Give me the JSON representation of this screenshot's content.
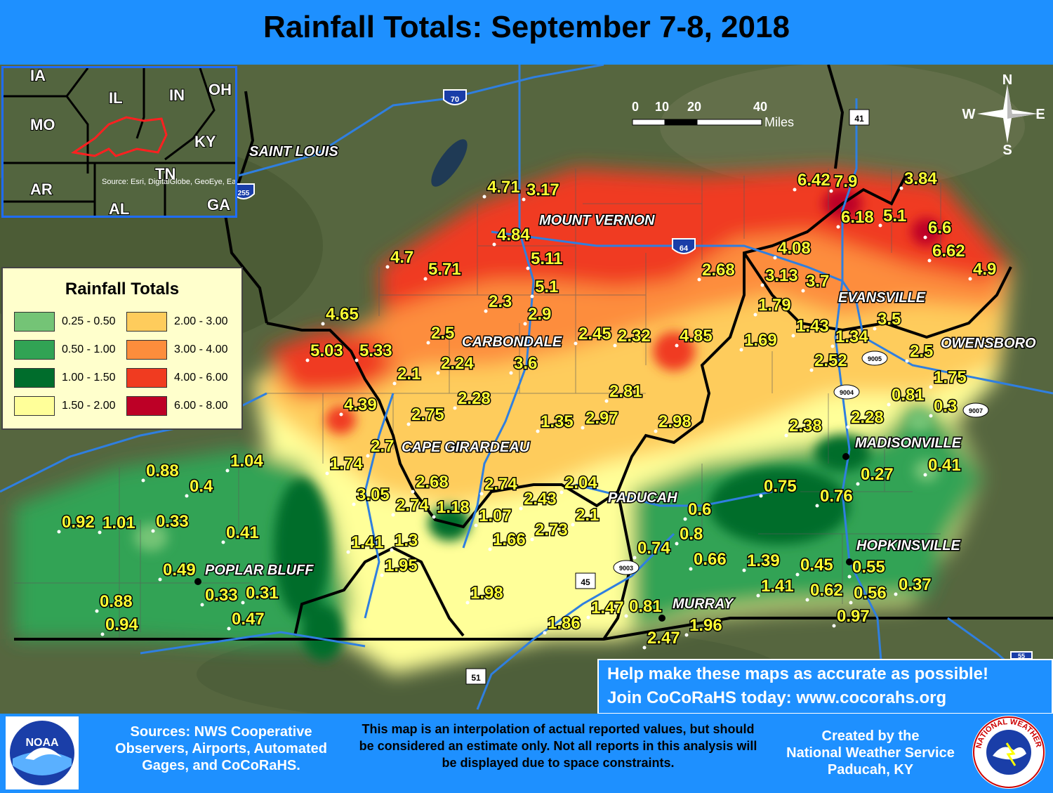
{
  "title": "Rainfall Totals: September 7-8, 2018",
  "inset": {
    "states": [
      "IA",
      "IL",
      "IN",
      "OH",
      "MO",
      "KY",
      "AR",
      "TN",
      "AL",
      "GA"
    ],
    "credit": "Source: Esri, DigitalGlobe, GeoEye, Earthstar Geographics, CNES/Airbus"
  },
  "legend": {
    "title": "Rainfall Totals",
    "items": [
      {
        "label": "0.25 - 0.50",
        "color": "#74c476"
      },
      {
        "label": "0.50 - 1.00",
        "color": "#31a354"
      },
      {
        "label": "1.00 - 1.50",
        "color": "#006d2c"
      },
      {
        "label": "1.50 - 2.00",
        "color": "#ffff99"
      },
      {
        "label": "2.00 - 3.00",
        "color": "#fecc5c"
      },
      {
        "label": "3.00 - 4.00",
        "color": "#fd8d3c"
      },
      {
        "label": "4.00 - 6.00",
        "color": "#f03b20"
      },
      {
        "label": "6.00 - 8.00",
        "color": "#bd0026"
      }
    ]
  },
  "scale": {
    "ticks": [
      "0",
      "10",
      "20",
      "40"
    ],
    "unit": "Miles"
  },
  "compass": {
    "n": "N",
    "s": "S",
    "e": "E",
    "w": "W"
  },
  "highways": [
    "70",
    "64",
    "41",
    "255",
    "45",
    "51",
    "9005",
    "9004",
    "9007",
    "9003",
    "55"
  ],
  "cities": [
    "SAINT LOUIS",
    "MOUNT VERNON",
    "CARBONDALE",
    "CAPE GIRARDEAU",
    "PADUCAH",
    "POPLAR BLUFF",
    "EVANSVILLE",
    "OWENSBORO",
    "MADISONVILLE",
    "HOPKINSVILLE",
    "MURRAY"
  ],
  "values": [
    "4.71",
    "3.17",
    "4.84",
    "5.11",
    "5.1",
    "4.7",
    "5.71",
    "2.3",
    "2.9",
    "4.65",
    "5.03",
    "5.33",
    "2.5",
    "2.24",
    "3.6",
    "2.1",
    "2.45",
    "2.32",
    "4.85",
    "6.42",
    "7.9",
    "3.84",
    "6.18",
    "5.1",
    "6.6",
    "6.62",
    "4.9",
    "4.08",
    "2.68",
    "3.13",
    "3.7",
    "1.79",
    "3.5",
    "1.43",
    "1.34",
    "1.69",
    "2.5",
    "2.52",
    "1.75",
    "2.81",
    "2.97",
    "1.35",
    "2.28",
    "2.75",
    "4.39",
    "2.98",
    "2.38",
    "2.28",
    "0.81",
    "0.3",
    "1.74",
    "2.7",
    "3.05",
    "2.68",
    "2.74",
    "2.74",
    "1.18",
    "1.07",
    "2.43",
    "2.04",
    "2.1",
    "2.73",
    "1.66",
    "0.6",
    "0.8",
    "0.75",
    "0.76",
    "0.27",
    "0.41",
    "0.74",
    "0.66",
    "1.39",
    "0.45",
    "0.55",
    "1.41",
    "0.62",
    "0.56",
    "0.37",
    "0.97",
    "1.04",
    "0.88",
    "0.4",
    "0.92",
    "1.01",
    "0.33",
    "0.41",
    "0.49",
    "0.33",
    "0.31",
    "0.88",
    "0.94",
    "0.47",
    "1.41",
    "1.3",
    "1.95",
    "1.98",
    "1.86",
    "1.47",
    "0.81",
    "1.96",
    "2.47"
  ],
  "cocorahs": {
    "line1": "Help make these maps as accurate as possible!",
    "line2": "Join CoCoRaHS today: www.cocorahs.org"
  },
  "footer": {
    "sources": "Sources: NWS Cooperative Observers, Airports, Automated Gages, and CoCoRaHS.",
    "disclaimer": "This map is an interpolation of actual reported values, but should be considered an estimate only. Not all reports in this analysis will be displayed due to space constraints.",
    "credit_line1": "Created by the",
    "credit_line2": "National Weather Service",
    "credit_line3": "Paducah, KY",
    "noaa_text": "NOAA",
    "nws_text": "NATIONAL WEATHER SERVICE"
  }
}
